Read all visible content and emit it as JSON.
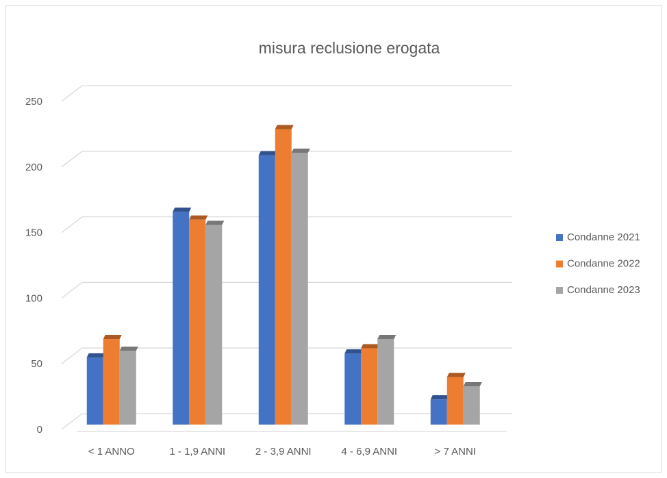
{
  "chart_data": {
    "type": "bar3d",
    "title": "misura reclusione erogata",
    "categories": [
      "< 1 ANNO",
      "1 - 1,9 ANNI",
      "2 - 3,9 ANNI",
      "4 - 6,9 ANNI",
      "> 7 ANNI"
    ],
    "series": [
      {
        "name": "Condanne 2021",
        "color": "#4472c4",
        "values": [
          46,
          157,
          200,
          49,
          14
        ]
      },
      {
        "name": "Condanne 2022",
        "color": "#ed7d31",
        "values": [
          60,
          151,
          220,
          53,
          31
        ]
      },
      {
        "name": "Condanne 2023",
        "color": "#a5a5a5",
        "values": [
          51,
          147,
          202,
          60,
          24
        ]
      }
    ],
    "ylim": [
      0,
      250
    ],
    "yticks": [
      0,
      50,
      100,
      150,
      200,
      250
    ],
    "grid": true,
    "legend": "right"
  }
}
